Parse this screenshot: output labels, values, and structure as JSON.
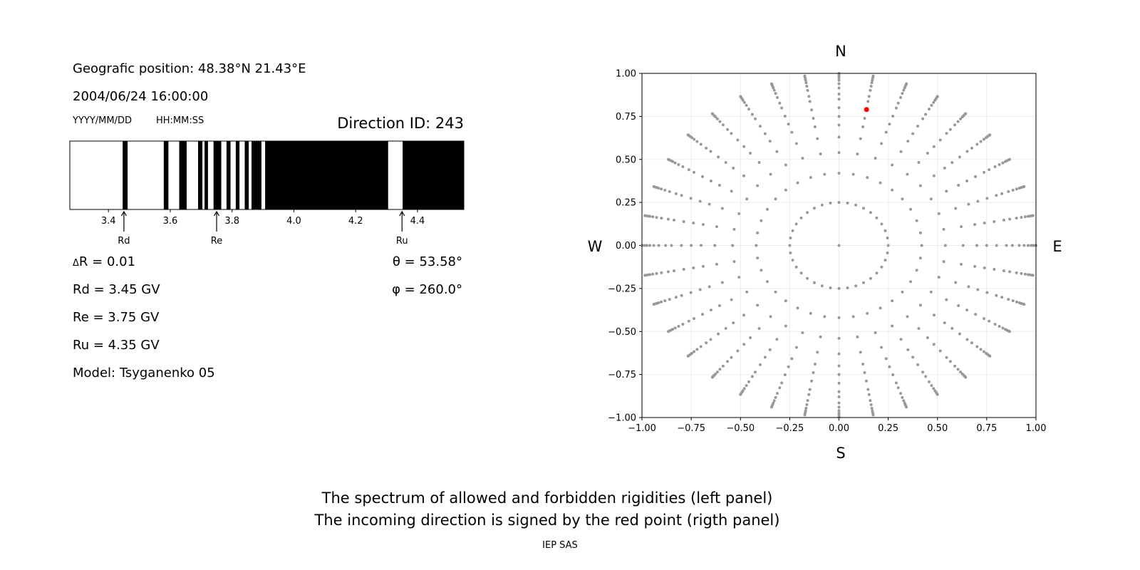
{
  "info": {
    "position": "Geografic position: 48.38°N 21.43°E",
    "datetime": "2004/06/24 16:00:00",
    "date_format": "YYYY/MM/DD",
    "time_format": "HH:MM:SS",
    "direction_id": "Direction ID: 243",
    "delta_r_symbol": "Δ",
    "delta_r_text": "R = 0.01",
    "rd": "Rd = 3.45 GV",
    "re": "Re = 3.75 GV",
    "ru": "Ru = 4.35 GV",
    "model": "Model: Tsyganenko 05",
    "theta": "θ = 53.58°",
    "phi": "φ = 260.0°"
  },
  "caption": {
    "line1": "The spectrum of allowed and forbidden rigidities (left panel)",
    "line2": "The incoming direction is signed by the red point (rigth panel)",
    "credit": "IEP SAS"
  },
  "compass": {
    "n": "N",
    "s": "S",
    "w": "W",
    "e": "E"
  },
  "chart_data": [
    {
      "type": "bar",
      "kind": "rigidity-spectrum",
      "xlim": [
        3.275,
        4.55
      ],
      "xticks": [
        "3.4",
        "3.6",
        "3.8",
        "4.0",
        "4.2",
        "4.4"
      ],
      "forbidden_color": "#000000",
      "allowed_color": "#ffffff",
      "forbidden_bands": [
        [
          3.446,
          3.462
        ],
        [
          3.579,
          3.594
        ],
        [
          3.629,
          3.653
        ],
        [
          3.69,
          3.704
        ],
        [
          3.711,
          3.722
        ],
        [
          3.74,
          3.765
        ],
        [
          3.782,
          3.795
        ],
        [
          3.812,
          3.824
        ],
        [
          3.841,
          3.854
        ],
        [
          3.863,
          3.895
        ],
        [
          3.907,
          4.305
        ],
        [
          4.352,
          4.55
        ]
      ],
      "markers": [
        {
          "label": "Rd",
          "value": 3.45
        },
        {
          "label": "Re",
          "value": 3.75
        },
        {
          "label": "Ru",
          "value": 4.35
        }
      ]
    },
    {
      "type": "scatter",
      "xlim": [
        -1,
        1
      ],
      "ylim": [
        -1,
        1
      ],
      "grid": true,
      "xticks": [
        "−1.00",
        "−0.75",
        "−0.50",
        "−0.25",
        "0.00",
        "0.25",
        "0.50",
        "0.75",
        "1.00"
      ],
      "yticks": [
        "−1.00",
        "−0.75",
        "−0.50",
        "−0.25",
        "0.00",
        "0.25",
        "0.50",
        "0.75",
        "1.00"
      ],
      "point_color": "#999999",
      "grid_azimuth_step_deg": 10,
      "grid_radii": [
        0.25,
        0.42,
        0.54,
        0.63,
        0.7,
        0.75,
        0.8,
        0.85,
        0.88,
        0.915,
        0.94,
        0.96,
        0.975,
        0.985,
        0.995,
        1.0
      ],
      "center_point": [
        0,
        0
      ],
      "highlight": {
        "x": 0.14,
        "y": 0.79,
        "color": "#ff0000"
      }
    }
  ]
}
